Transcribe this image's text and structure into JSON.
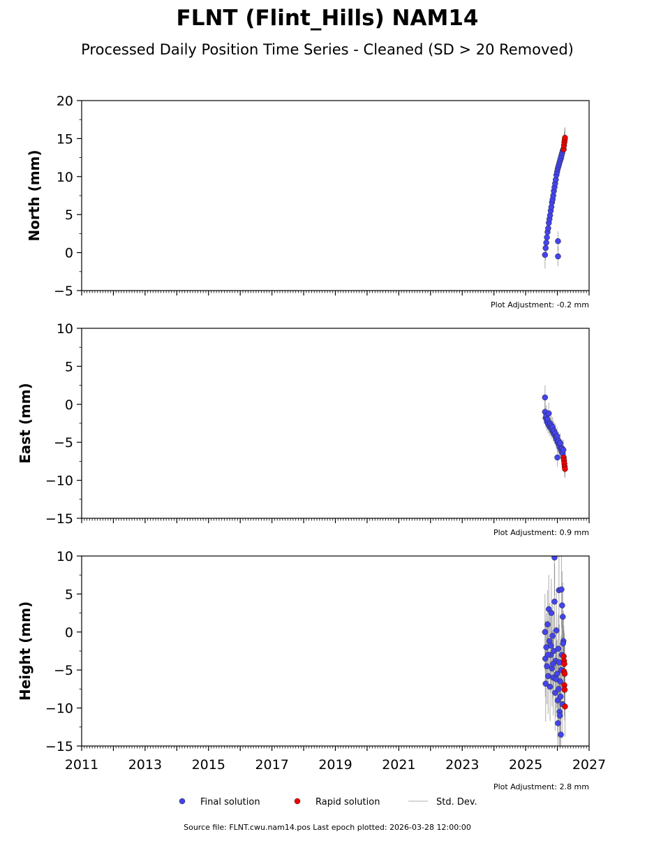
{
  "chart_data": {
    "type": "scatter",
    "title": "FLNT (Flint_Hills) NAM14",
    "subtitle": "Processed Daily Position Time Series - Cleaned (SD > 20 Removed)",
    "xlim": [
      2011,
      2027
    ],
    "x_ticks": [
      "2011",
      "2013",
      "2015",
      "2017",
      "2019",
      "2021",
      "2023",
      "2025",
      "2027"
    ],
    "colors": {
      "final": "#4444ee",
      "rapid": "#ee0000",
      "sd": "#888888"
    },
    "legend": {
      "placement": "bottom",
      "entries": [
        "Final solution",
        "Rapid solution",
        "Std. Dev."
      ]
    },
    "panels": [
      {
        "ylabel": "North (mm)",
        "ylim": [
          -5,
          20
        ],
        "y_ticks": [
          -5,
          0,
          5,
          10,
          15,
          20
        ],
        "adjustment": "Plot Adjustment: -0.2 mm",
        "final": {
          "x": [
            2025.61,
            2025.63,
            2025.65,
            2025.67,
            2025.69,
            2025.71,
            2025.73,
            2025.75,
            2025.77,
            2025.79,
            2025.81,
            2025.83,
            2025.85,
            2025.87,
            2025.89,
            2025.91,
            2025.93,
            2025.95,
            2025.97,
            2025.99,
            2026.01,
            2026.03,
            2026.05,
            2026.07,
            2026.09,
            2026.11,
            2026.13,
            2026.15,
            2026.17,
            2026.19,
            2026.02,
            2026.02
          ],
          "y": [
            -0.3,
            0.6,
            1.3,
            2.0,
            2.7,
            3.2,
            3.9,
            4.4,
            4.9,
            5.5,
            6.0,
            6.6,
            7.0,
            7.5,
            8.1,
            8.6,
            9.1,
            9.6,
            10.2,
            10.6,
            11.0,
            11.3,
            11.6,
            11.9,
            12.2,
            12.5,
            12.8,
            13.1,
            13.4,
            13.6,
            1.5,
            -0.5
          ],
          "sd": [
            1.8,
            1.6,
            1.5,
            1.4,
            1.5,
            1.3,
            1.4,
            1.3,
            1.2,
            1.3,
            1.2,
            1.3,
            1.2,
            1.3,
            1.4,
            1.2,
            1.3,
            1.2,
            1.3,
            1.2,
            1.3,
            1.2,
            1.4,
            1.3,
            1.2,
            1.3,
            1.4,
            1.3,
            1.5,
            1.4,
            1.3,
            1.3
          ]
        },
        "rapid": {
          "x": [
            2026.2,
            2026.21,
            2026.22,
            2026.23,
            2026.24
          ],
          "y": [
            13.6,
            14.1,
            14.5,
            14.8,
            15.1
          ],
          "sd": [
            1.4,
            1.5,
            1.4,
            1.5,
            1.4
          ]
        }
      },
      {
        "ylabel": "East (mm)",
        "ylim": [
          -15,
          10
        ],
        "y_ticks": [
          -15,
          -10,
          -5,
          0,
          5,
          10
        ],
        "adjustment": "Plot Adjustment: 0.9 mm",
        "final": {
          "x": [
            2025.61,
            2025.63,
            2025.65,
            2025.67,
            2025.69,
            2025.71,
            2025.73,
            2025.75,
            2025.77,
            2025.79,
            2025.81,
            2025.83,
            2025.85,
            2025.87,
            2025.89,
            2025.91,
            2025.93,
            2025.95,
            2025.97,
            2025.99,
            2026.01,
            2026.03,
            2026.05,
            2026.07,
            2026.09,
            2026.11,
            2026.13,
            2026.15,
            2026.17,
            2026.19,
            2025.61,
            2026.0
          ],
          "y": [
            -1.0,
            -1.8,
            -1.5,
            -2.3,
            -2.0,
            -2.6,
            -1.2,
            -2.9,
            -2.5,
            -3.1,
            -2.8,
            -3.4,
            -3.0,
            -3.7,
            -3.5,
            -4.0,
            -3.8,
            -4.3,
            -4.6,
            -4.2,
            -5.0,
            -4.8,
            -5.3,
            -5.6,
            -5.1,
            -5.9,
            -6.2,
            -5.8,
            -6.5,
            -6.0,
            0.9,
            -7.0
          ],
          "sd": [
            1.5,
            1.3,
            1.4,
            1.2,
            1.3,
            1.2,
            1.4,
            1.2,
            1.3,
            1.2,
            1.3,
            1.2,
            1.3,
            1.2,
            1.3,
            1.2,
            1.3,
            1.2,
            1.3,
            1.2,
            1.3,
            1.2,
            1.3,
            1.2,
            1.3,
            1.4,
            1.3,
            1.2,
            1.4,
            1.3,
            1.6,
            1.2
          ]
        },
        "rapid": {
          "x": [
            2026.2,
            2026.21,
            2026.22,
            2026.23,
            2026.24
          ],
          "y": [
            -7.0,
            -7.4,
            -7.8,
            -8.2,
            -8.5
          ],
          "sd": [
            1.2,
            1.3,
            1.2,
            1.3,
            1.2
          ]
        }
      },
      {
        "ylabel": "Height (mm)",
        "ylim": [
          -15,
          10
        ],
        "y_ticks": [
          -15,
          -10,
          -5,
          0,
          5,
          10
        ],
        "adjustment": "Plot Adjustment: 2.8 mm",
        "final": {
          "x": [
            2025.61,
            2025.62,
            2025.63,
            2025.65,
            2025.67,
            2025.69,
            2025.71,
            2025.73,
            2025.75,
            2025.77,
            2025.79,
            2025.81,
            2025.83,
            2025.85,
            2025.87,
            2025.89,
            2025.91,
            2025.93,
            2025.95,
            2025.97,
            2025.99,
            2026.01,
            2026.02,
            2026.03,
            2026.05,
            2026.07,
            2026.09,
            2026.11,
            2026.13,
            2026.15,
            2026.17,
            2026.19,
            2025.91,
            2026.04,
            2026.06,
            2026.08,
            2026.1,
            2026.12,
            2026.14,
            2026.16,
            2026.18,
            2025.7,
            2025.8,
            2025.86,
            2025.96
          ],
          "y": [
            0.0,
            -3.5,
            -6.8,
            -2.0,
            -4.5,
            1.0,
            -5.8,
            3.0,
            -1.2,
            -7.2,
            -3.0,
            2.5,
            -4.8,
            -0.5,
            -6.0,
            -2.5,
            9.8,
            -8.0,
            -3.8,
            0.2,
            -5.5,
            -9.0,
            -12.0,
            -2.2,
            5.5,
            -10.5,
            -6.5,
            -13.5,
            5.6,
            3.5,
            2.0,
            -1.2,
            4.0,
            -7.5,
            -4.0,
            -11.0,
            -8.5,
            -5.0,
            -3.0,
            -9.5,
            -1.5,
            -3.0,
            -1.8,
            -4.2,
            -6.2
          ],
          "sd": [
            5,
            5,
            5,
            4.5,
            5,
            4.5,
            5,
            4.5,
            5,
            4.5,
            5,
            4.5,
            5,
            4.5,
            5,
            5,
            5,
            5,
            4.5,
            5,
            4.5,
            5,
            5,
            4.5,
            5,
            4.5,
            5,
            5,
            5,
            4.5,
            4.5,
            4,
            5,
            4.5,
            5,
            4.5,
            5,
            4.5,
            4.5,
            4.5,
            4,
            4.5,
            5,
            4.5,
            5
          ]
        },
        "rapid": {
          "x": [
            2026.2,
            2026.21,
            2026.21,
            2026.22,
            2026.22,
            2026.23,
            2026.23,
            2026.24
          ],
          "y": [
            -3.2,
            -3.8,
            -5.2,
            -4.2,
            -7.0,
            -5.5,
            -7.6,
            -9.8
          ],
          "sd": [
            4,
            4,
            4,
            4,
            4,
            4,
            4,
            4
          ]
        }
      }
    ],
    "source": "Source file: FLNT.cwu.nam14.pos  Last epoch plotted: 2026-03-28 12:00:00"
  }
}
